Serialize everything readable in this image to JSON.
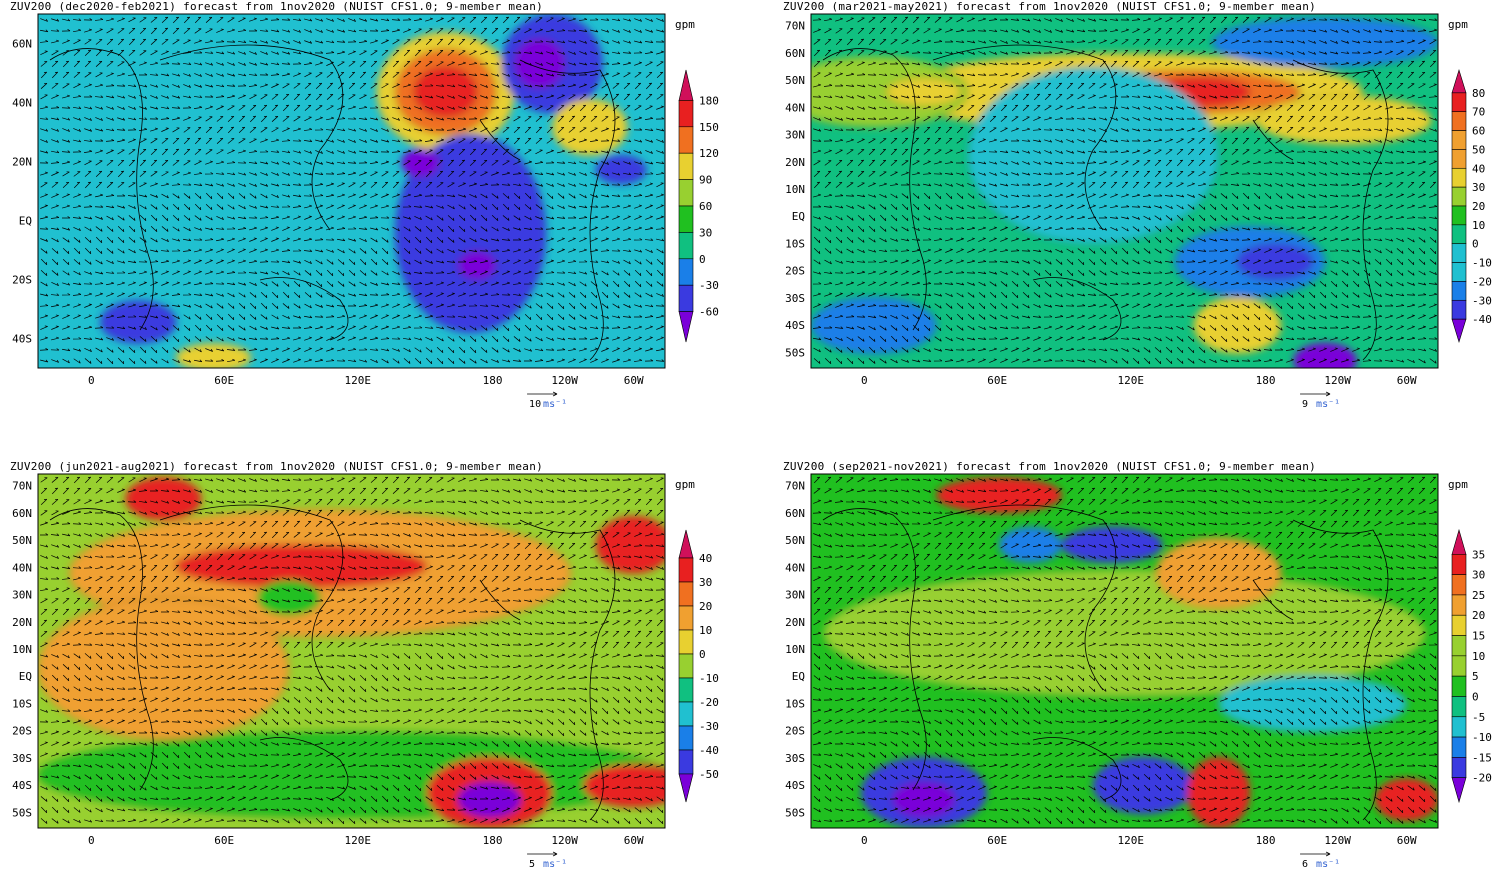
{
  "panels": [
    {
      "id": "djf",
      "title": "ZUV200 (dec2020-feb2021) forecast from 1nov2020 (NUIST CFS1.0; 9-member mean)",
      "unit": "gpm",
      "ylabels": [
        "60N",
        "40N",
        "20N",
        "EQ",
        "20S",
        "40S"
      ],
      "xlabels": [
        "0",
        "60E",
        "120E",
        "180",
        "120W",
        "60W"
      ],
      "colorbar_levels": [
        "180",
        "150",
        "120",
        "90",
        "60",
        "30",
        "0",
        "-30",
        "-60"
      ],
      "vector_ref": "10",
      "vector_unit": "ms⁻¹"
    },
    {
      "id": "mam",
      "title": "ZUV200 (mar2021-may2021) forecast from 1nov2020 (NUIST CFS1.0; 9-member mean)",
      "unit": "gpm",
      "ylabels": [
        "70N",
        "60N",
        "50N",
        "40N",
        "30N",
        "20N",
        "10N",
        "EQ",
        "10S",
        "20S",
        "30S",
        "40S",
        "50S"
      ],
      "xlabels": [
        "0",
        "60E",
        "120E",
        "180",
        "120W",
        "60W"
      ],
      "colorbar_levels": [
        "80",
        "70",
        "60",
        "50",
        "40",
        "30",
        "20",
        "10",
        "0",
        "-10",
        "-20",
        "-30",
        "-40"
      ],
      "vector_ref": "9",
      "vector_unit": "ms⁻¹"
    },
    {
      "id": "jja",
      "title": "ZUV200 (jun2021-aug2021) forecast from 1nov2020 (NUIST CFS1.0; 9-member mean)",
      "unit": "gpm",
      "ylabels": [
        "70N",
        "60N",
        "50N",
        "40N",
        "30N",
        "20N",
        "10N",
        "EQ",
        "10S",
        "20S",
        "30S",
        "40S",
        "50S"
      ],
      "xlabels": [
        "0",
        "60E",
        "120E",
        "180",
        "120W",
        "60W"
      ],
      "colorbar_levels": [
        "40",
        "30",
        "20",
        "10",
        "0",
        "-10",
        "-20",
        "-30",
        "-40",
        "-50"
      ],
      "vector_ref": "5",
      "vector_unit": "ms⁻¹"
    },
    {
      "id": "son",
      "title": "ZUV200 (sep2021-nov2021) forecast from 1nov2020 (NUIST CFS1.0; 9-member mean)",
      "unit": "gpm",
      "ylabels": [
        "70N",
        "60N",
        "50N",
        "40N",
        "30N",
        "20N",
        "10N",
        "EQ",
        "10S",
        "20S",
        "30S",
        "40S",
        "50S"
      ],
      "xlabels": [
        "0",
        "60E",
        "120E",
        "180",
        "120W",
        "60W"
      ],
      "colorbar_levels": [
        "35",
        "30",
        "25",
        "20",
        "15",
        "10",
        "5",
        "0",
        "-5",
        "-10",
        "-15",
        "-20"
      ],
      "vector_ref": "6",
      "vector_unit": "ms⁻¹"
    }
  ],
  "chart_data": [
    {
      "type": "heatmap",
      "title": "ZUV200 (dec2020-feb2021) forecast from 1nov2020 (NUIST CFS1.0; 9-member mean)",
      "unit": "gpm",
      "levels": [
        -60,
        -30,
        0,
        30,
        60,
        90,
        120,
        150,
        180
      ]
    },
    {
      "type": "heatmap",
      "title": "ZUV200 (mar2021-may2021) forecast from 1nov2020 (NUIST CFS1.0; 9-member mean)",
      "unit": "gpm",
      "levels": [
        -40,
        -30,
        -20,
        -10,
        0,
        10,
        20,
        30,
        40,
        50,
        60,
        70,
        80
      ]
    },
    {
      "type": "heatmap",
      "title": "ZUV200 (jun2021-aug2021) forecast from 1nov2020 (NUIST CFS1.0; 9-member mean)",
      "unit": "gpm",
      "levels": [
        -50,
        -40,
        -30,
        -20,
        -10,
        0,
        10,
        20,
        30,
        40
      ]
    },
    {
      "type": "heatmap",
      "title": "ZUV200 (sep2021-nov2021) forecast from 1nov2020 (NUIST CFS1.0; 9-member mean)",
      "unit": "gpm",
      "levels": [
        -20,
        -15,
        -10,
        -5,
        0,
        5,
        10,
        15,
        20,
        25,
        30,
        35
      ]
    }
  ],
  "palette": [
    "#7a00d9",
    "#3a3ae0",
    "#1a7fe8",
    "#20c0d0",
    "#10c080",
    "#20c020",
    "#98d030",
    "#e8d030",
    "#f0a030",
    "#f07020",
    "#e82020",
    "#d0105a"
  ]
}
